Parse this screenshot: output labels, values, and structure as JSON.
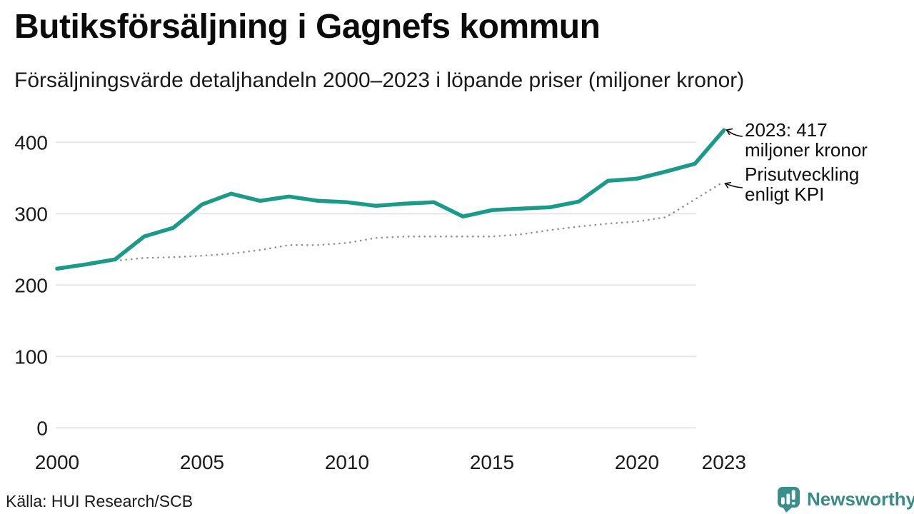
{
  "header": {
    "title": "Butiksförsäljning i Gagnefs kommun",
    "subtitle": "Försäljningsvärde detaljhandeln 2000–2023 i löpande priser (miljoner kronor)"
  },
  "annotations": {
    "sales": {
      "line1": "2023: 417",
      "line2": "miljoner kronor"
    },
    "kpi": {
      "line1": "Prisutveckling",
      "line2": "enligt KPI"
    }
  },
  "footer": {
    "source": "Källa: HUI Research/SCB",
    "brand_name": "Newsworthy"
  },
  "icons": {
    "brand": "newsworthy-speech-bubble-bar-chart-icon"
  },
  "colors": {
    "sales_line": "#1b9a8a",
    "kpi_line": "#8f8f8f",
    "gridline": "#e7e7e7",
    "text": "#111111",
    "brand_teal": "#3a8a87"
  },
  "chart_data": {
    "type": "line",
    "title": "Butiksförsäljning i Gagnefs kommun",
    "subtitle": "Försäljningsvärde detaljhandeln 2000–2023 i löpande priser (miljoner kronor)",
    "x": [
      2000,
      2001,
      2002,
      2003,
      2004,
      2005,
      2006,
      2007,
      2008,
      2009,
      2010,
      2011,
      2012,
      2013,
      2014,
      2015,
      2016,
      2017,
      2018,
      2019,
      2020,
      2021,
      2022,
      2023
    ],
    "series": [
      {
        "name": "Butiksförsäljning i löpande priser (miljoner kronor)",
        "style": "solid",
        "color": "#1b9a8a",
        "values": [
          223,
          229,
          236,
          268,
          280,
          313,
          328,
          318,
          324,
          318,
          316,
          311,
          314,
          316,
          296,
          305,
          307,
          309,
          317,
          346,
          349,
          359,
          370,
          417
        ]
      },
      {
        "name": "Prisutveckling enligt KPI",
        "style": "dotted",
        "color": "#8f8f8f",
        "values": [
          223,
          228,
          234,
          238,
          239,
          241,
          244,
          249,
          256,
          256,
          259,
          266,
          268,
          268,
          268,
          268,
          271,
          277,
          282,
          286,
          289,
          295,
          320,
          345
        ]
      }
    ],
    "xlabel": "",
    "ylabel": "",
    "ylim": [
      0,
      430
    ],
    "yticks": [
      0,
      100,
      200,
      300,
      400
    ],
    "xticks": [
      2000,
      2005,
      2010,
      2015,
      2020,
      2023
    ],
    "grid": "horizontal-only",
    "legend": "inline-annotations",
    "source": "HUI Research/SCB"
  }
}
